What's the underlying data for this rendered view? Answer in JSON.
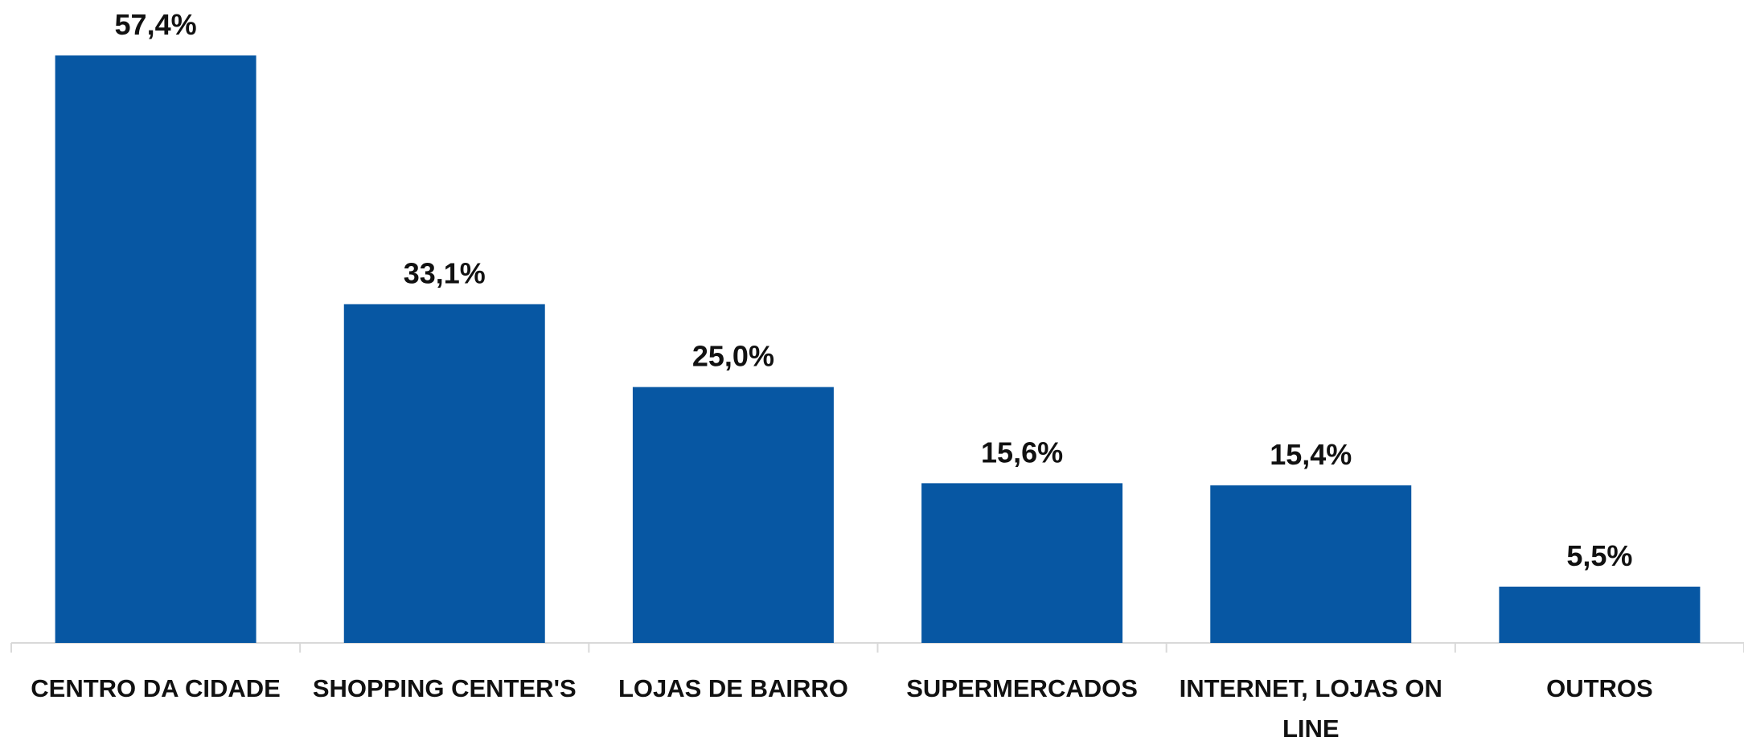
{
  "chart_data": {
    "type": "bar",
    "categories": [
      "CENTRO DA CIDADE",
      "SHOPPING CENTER'S",
      "LOJAS DE BAIRRO",
      "SUPERMERCADOS",
      "INTERNET, LOJAS ON LINE",
      "OUTROS"
    ],
    "values": [
      57.4,
      33.1,
      25.0,
      15.6,
      15.4,
      5.5
    ],
    "value_labels": [
      "57,4%",
      "33,1%",
      "25,0%",
      "15,6%",
      "15,4%",
      "5,5%"
    ],
    "color": "#0757a3"
  }
}
